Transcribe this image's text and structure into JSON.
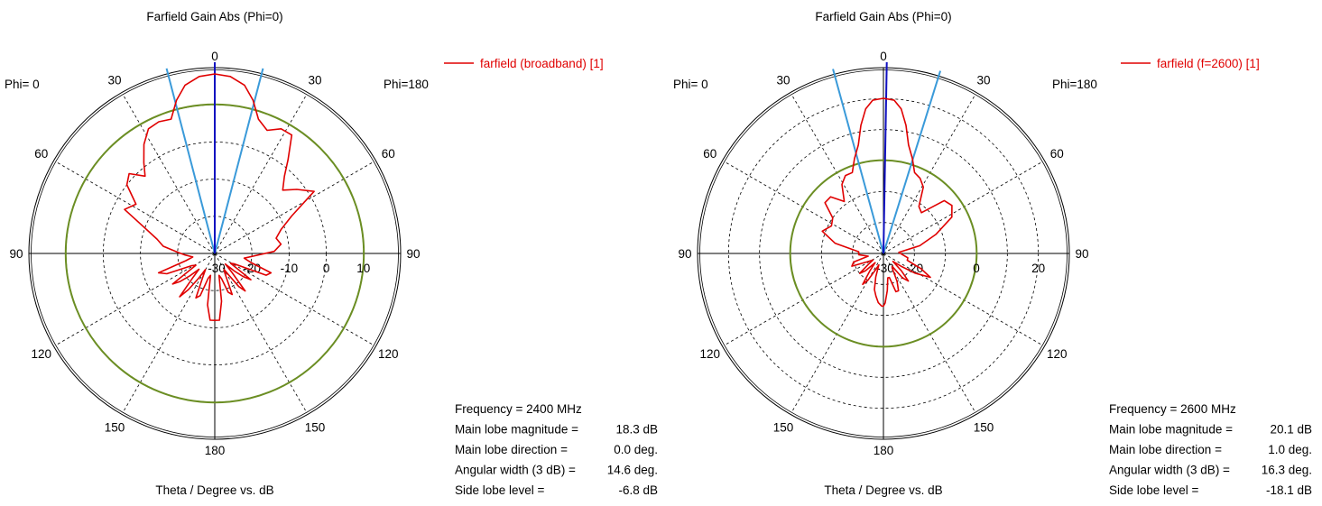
{
  "chart_data": [
    {
      "type": "polar",
      "title": "Farfield Gain Abs (Phi=0)",
      "xlabel": "Theta / Degree vs. dB",
      "phi_left_label": "Phi=  0",
      "phi_right_label": "Phi=180",
      "angle_labels": [
        "0",
        "30",
        "60",
        "90",
        "120",
        "150",
        "180"
      ],
      "radial_range_db": [
        -30,
        20
      ],
      "radial_tick_labels": [
        "-30",
        "-20",
        "-10",
        "0",
        "10"
      ],
      "legend": {
        "label": "farfield (broadband) [1]",
        "color": "#e00000",
        "placement": "top-right"
      },
      "reference_circle_db": 10.1,
      "main_lobe_direction_deg": 0.0,
      "beamwidth_markers_deg": [
        -14.6,
        14.6
      ],
      "grid": true,
      "series": [
        {
          "name": "farfield (broadband) [1]",
          "theta_deg": [
            0,
            5,
            10,
            14,
            18,
            23,
            28,
            33,
            38,
            42,
            47,
            52,
            58,
            64,
            70,
            76,
            82,
            88,
            93,
            99,
            104,
            109,
            113,
            118,
            122,
            126,
            129,
            132,
            135,
            138,
            141,
            144,
            147,
            150,
            153,
            157,
            161,
            165,
            169,
            172,
            176,
            180
          ],
          "left_db": [
            18.3,
            17.8,
            16,
            12.5,
            8,
            8.5,
            8,
            5,
            1,
            -2,
            1.5,
            0,
            -5,
            -3,
            -10,
            -14,
            -16,
            -20,
            -22,
            -24,
            -22,
            -14,
            -16,
            -23,
            -24,
            -16,
            -18,
            -21,
            -24,
            -21,
            -15,
            -18,
            -22,
            -25,
            -23,
            -17,
            -18,
            -23,
            -24,
            -16,
            -12,
            -12
          ],
          "right_db": [
            18.3,
            17.8,
            16,
            12.5,
            8,
            6,
            8,
            8,
            2,
            -2,
            -5,
            -2,
            1.5,
            -7,
            -11,
            -13,
            -12,
            -14,
            -19,
            -22,
            -20,
            -14,
            -15,
            -24,
            -25,
            -18,
            -20,
            -23,
            -26,
            -23,
            -17,
            -19,
            -23,
            -25,
            -24,
            -18,
            -19,
            -23,
            -24,
            -17,
            -12,
            -12
          ]
        }
      ],
      "info": [
        {
          "label": "Frequency = 2400 MHz",
          "value": ""
        },
        {
          "label": "Main lobe magnitude =",
          "value": "18.3 dB"
        },
        {
          "label": "Main lobe direction =",
          "value": "0.0 deg."
        },
        {
          "label": "Angular width (3 dB) =",
          "value": "14.6 deg."
        },
        {
          "label": "Side lobe level =",
          "value": "-6.8 dB"
        }
      ]
    },
    {
      "type": "polar",
      "title": "Farfield Gain Abs (Phi=0)",
      "xlabel": "Theta / Degree vs. dB",
      "phi_left_label": "Phi=  0",
      "phi_right_label": "Phi=180",
      "angle_labels": [
        "0",
        "30",
        "60",
        "90",
        "120",
        "150",
        "180"
      ],
      "radial_range_db": [
        -30,
        30
      ],
      "radial_tick_labels": [
        "-30",
        "-20",
        "0",
        "20"
      ],
      "radial_tick_values": [
        -30,
        -20,
        0,
        20
      ],
      "legend": {
        "label": "farfield (f=2600) [1]",
        "color": "#e00000",
        "placement": "top-right"
      },
      "reference_circle_db": 0.1,
      "main_lobe_direction_deg": 1.0,
      "beamwidth_markers_deg": [
        -15.3,
        17.3
      ],
      "grid": true,
      "series": [
        {
          "name": "farfield (f=2600) [1]",
          "theta_deg": [
            0,
            4,
            7,
            10,
            13,
            17,
            21,
            26,
            31,
            37,
            43,
            49,
            55,
            62,
            70,
            78,
            86,
            93,
            100,
            106,
            112,
            117,
            122,
            126,
            130,
            134,
            138,
            142,
            146,
            150,
            154,
            158,
            162,
            166,
            170,
            174,
            178,
            180
          ],
          "left_db": [
            20.1,
            19.6,
            17,
            12,
            6,
            2,
            -2,
            -2,
            -4,
            -9,
            -5,
            -5,
            -10,
            -11,
            -9,
            -14,
            -22,
            -22,
            -25,
            -20,
            -19,
            -24,
            -26,
            -24,
            -20,
            -22,
            -26,
            -23,
            -18,
            -20,
            -24,
            -26,
            -22,
            -18,
            -16,
            -14,
            -13,
            -13
          ],
          "right_db": [
            20.1,
            19.6,
            17,
            12,
            6,
            2,
            -2,
            -3,
            -5,
            -11,
            -12,
            -4,
            -3,
            -5,
            -12,
            -18,
            -25,
            -24,
            -22,
            -22,
            -17,
            -13,
            -18,
            -23,
            -26,
            -22,
            -18,
            -20,
            -25,
            -24,
            -20,
            -17,
            -17,
            -22,
            -22,
            -18,
            -14,
            -13
          ]
        }
      ],
      "info": [
        {
          "label": "Frequency = 2600 MHz",
          "value": ""
        },
        {
          "label": "Main lobe magnitude =",
          "value": "20.1 dB"
        },
        {
          "label": "Main lobe direction =",
          "value": "1.0 deg."
        },
        {
          "label": "Angular width (3 dB) =",
          "value": "16.3 deg."
        },
        {
          "label": "Side lobe level =",
          "value": "-18.1 dB"
        }
      ]
    }
  ]
}
